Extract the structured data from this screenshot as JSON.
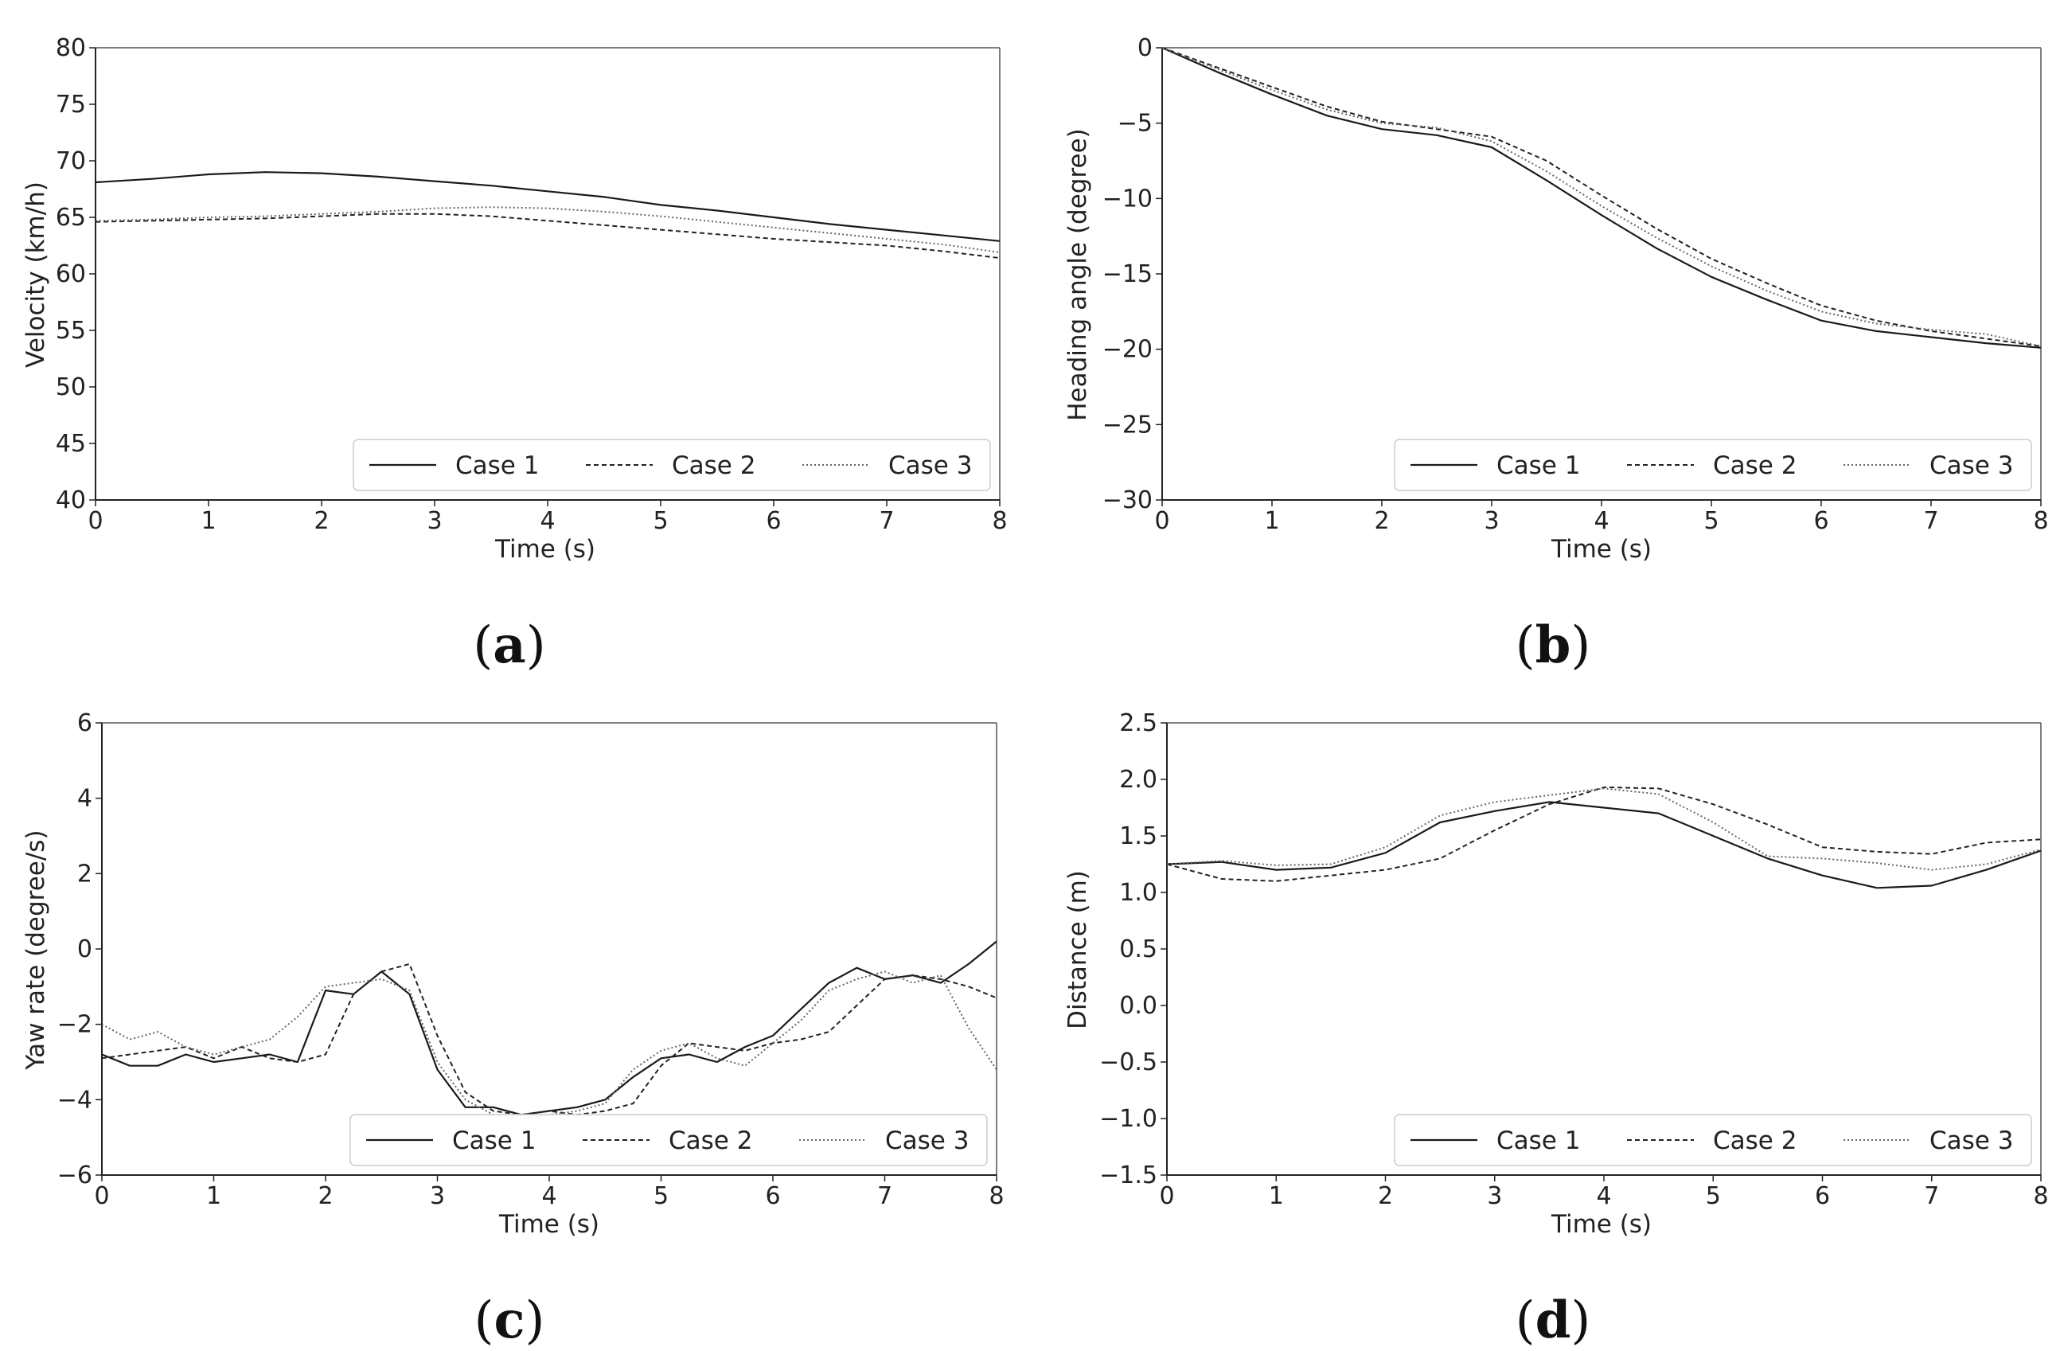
{
  "chart_data": [
    {
      "type": "line",
      "caption": "a",
      "xlabel": "Time (s)",
      "ylabel": "Velocity (km/h)",
      "xlim": [
        0,
        8
      ],
      "ylim": [
        40,
        80
      ],
      "xticks": [
        "0",
        "1",
        "2",
        "3",
        "4",
        "5",
        "6",
        "7",
        "8"
      ],
      "yticks": [
        "40",
        "45",
        "50",
        "55",
        "60",
        "65",
        "70",
        "75",
        "80"
      ],
      "legend": [
        "Case 1",
        "Case 2",
        "Case 3"
      ],
      "series": [
        {
          "name": "Case 1",
          "x": [
            0,
            0.5,
            1,
            1.5,
            2,
            2.5,
            3,
            3.5,
            4,
            4.5,
            5,
            5.5,
            6,
            6.5,
            7,
            7.5,
            8
          ],
          "y": [
            68.1,
            68.4,
            68.8,
            69.0,
            68.9,
            68.6,
            68.2,
            67.8,
            67.3,
            66.8,
            66.1,
            65.6,
            65.0,
            64.4,
            63.9,
            63.4,
            62.9
          ]
        },
        {
          "name": "Case 2",
          "x": [
            0,
            0.5,
            1,
            1.5,
            2,
            2.5,
            3,
            3.5,
            4,
            4.5,
            5,
            5.5,
            6,
            6.5,
            7,
            7.5,
            8
          ],
          "y": [
            64.6,
            64.7,
            64.8,
            64.9,
            65.1,
            65.3,
            65.3,
            65.1,
            64.7,
            64.3,
            63.9,
            63.5,
            63.1,
            62.8,
            62.5,
            62.0,
            61.4
          ]
        },
        {
          "name": "Case 3",
          "x": [
            0,
            0.5,
            1,
            1.5,
            2,
            2.5,
            3,
            3.5,
            4,
            4.5,
            5,
            5.5,
            6,
            6.5,
            7,
            7.5,
            8
          ],
          "y": [
            64.7,
            64.8,
            65.0,
            65.1,
            65.3,
            65.5,
            65.8,
            65.9,
            65.8,
            65.5,
            65.1,
            64.6,
            64.1,
            63.6,
            63.1,
            62.6,
            61.9
          ]
        }
      ]
    },
    {
      "type": "line",
      "caption": "b",
      "xlabel": "Time (s)",
      "ylabel": "Heading angle (degree)",
      "xlim": [
        0,
        8
      ],
      "ylim": [
        -30,
        0
      ],
      "xticks": [
        "0",
        "1",
        "2",
        "3",
        "4",
        "5",
        "6",
        "7",
        "8"
      ],
      "yticks": [
        "0",
        "−5",
        "−10",
        "−15",
        "−20",
        "−25",
        "−30"
      ],
      "legend": [
        "Case 1",
        "Case 2",
        "Case 3"
      ],
      "series": [
        {
          "name": "Case 1",
          "x": [
            0,
            0.5,
            1,
            1.5,
            2,
            2.5,
            3,
            3.5,
            4,
            4.5,
            5,
            5.5,
            6,
            6.5,
            7,
            7.5,
            8
          ],
          "y": [
            0,
            -1.6,
            -3.1,
            -4.5,
            -5.4,
            -5.8,
            -6.6,
            -8.8,
            -11.1,
            -13.3,
            -15.2,
            -16.7,
            -18.1,
            -18.8,
            -19.2,
            -19.6,
            -19.9
          ]
        },
        {
          "name": "Case 2",
          "x": [
            0,
            0.5,
            1,
            1.5,
            2,
            2.5,
            3,
            3.5,
            4,
            4.5,
            5,
            5.5,
            6,
            6.5,
            7,
            7.5,
            8
          ],
          "y": [
            0,
            -1.3,
            -2.6,
            -3.9,
            -4.9,
            -5.4,
            -5.9,
            -7.5,
            -9.8,
            -12.0,
            -14.0,
            -15.6,
            -17.1,
            -18.1,
            -18.8,
            -19.3,
            -19.8
          ]
        },
        {
          "name": "Case 3",
          "x": [
            0,
            0.5,
            1,
            1.5,
            2,
            2.5,
            3,
            3.5,
            4,
            4.5,
            5,
            5.5,
            6,
            6.5,
            7,
            7.5,
            8
          ],
          "y": [
            0,
            -1.4,
            -2.8,
            -4.1,
            -5.0,
            -5.3,
            -6.2,
            -8.2,
            -10.5,
            -12.6,
            -14.5,
            -16.1,
            -17.5,
            -18.3,
            -18.7,
            -19.0,
            -19.8
          ]
        }
      ]
    },
    {
      "type": "line",
      "caption": "c",
      "xlabel": "Time (s)",
      "ylabel": "Yaw rate (degree/s)",
      "xlim": [
        0,
        8
      ],
      "ylim": [
        -6,
        6
      ],
      "xticks": [
        "0",
        "1",
        "2",
        "3",
        "4",
        "5",
        "6",
        "7",
        "8"
      ],
      "yticks": [
        "−6",
        "−4",
        "−2",
        "0",
        "2",
        "4",
        "6"
      ],
      "legend": [
        "Case 1",
        "Case 2",
        "Case 3"
      ],
      "series": [
        {
          "name": "Case 1",
          "x": [
            0,
            0.25,
            0.5,
            0.75,
            1,
            1.25,
            1.5,
            1.75,
            2,
            2.25,
            2.5,
            2.75,
            3,
            3.25,
            3.5,
            3.75,
            4,
            4.25,
            4.5,
            4.75,
            5,
            5.25,
            5.5,
            5.75,
            6,
            6.25,
            6.5,
            6.75,
            7,
            7.25,
            7.5,
            7.75,
            8
          ],
          "y": [
            -2.8,
            -3.1,
            -3.1,
            -2.8,
            -3.0,
            -2.9,
            -2.8,
            -3.0,
            -1.1,
            -1.2,
            -0.6,
            -1.2,
            -3.2,
            -4.2,
            -4.2,
            -4.4,
            -4.3,
            -4.2,
            -4.0,
            -3.4,
            -2.9,
            -2.8,
            -3.0,
            -2.6,
            -2.3,
            -1.6,
            -0.9,
            -0.5,
            -0.8,
            -0.7,
            -0.9,
            -0.4,
            0.2
          ]
        },
        {
          "name": "Case 2",
          "x": [
            0,
            0.25,
            0.5,
            0.75,
            1,
            1.25,
            1.5,
            1.75,
            2,
            2.25,
            2.5,
            2.75,
            3,
            3.25,
            3.5,
            3.75,
            4,
            4.25,
            4.5,
            4.75,
            5,
            5.25,
            5.5,
            5.75,
            6,
            6.25,
            6.5,
            6.75,
            7,
            7.25,
            7.5,
            7.75,
            8
          ],
          "y": [
            -2.9,
            -2.8,
            -2.7,
            -2.6,
            -2.9,
            -2.6,
            -2.9,
            -3.0,
            -2.8,
            -1.2,
            -0.6,
            -0.4,
            -2.3,
            -3.8,
            -4.3,
            -4.4,
            -4.3,
            -4.4,
            -4.3,
            -4.1,
            -3.1,
            -2.5,
            -2.6,
            -2.7,
            -2.5,
            -2.4,
            -2.2,
            -1.5,
            -0.8,
            -0.7,
            -0.8,
            -1.0,
            -1.3
          ]
        },
        {
          "name": "Case 3",
          "x": [
            0,
            0.25,
            0.5,
            0.75,
            1,
            1.25,
            1.5,
            1.75,
            2,
            2.25,
            2.5,
            2.75,
            3,
            3.25,
            3.5,
            3.75,
            4,
            4.25,
            4.5,
            4.75,
            5,
            5.25,
            5.5,
            5.75,
            6,
            6.25,
            6.5,
            6.75,
            7,
            7.25,
            7.5,
            7.75,
            8
          ],
          "y": [
            -2.0,
            -2.4,
            -2.2,
            -2.6,
            -2.8,
            -2.6,
            -2.4,
            -1.8,
            -1.0,
            -0.9,
            -0.8,
            -1.1,
            -3.0,
            -4.0,
            -4.4,
            -4.5,
            -4.4,
            -4.3,
            -4.1,
            -3.2,
            -2.7,
            -2.5,
            -2.9,
            -3.1,
            -2.5,
            -1.9,
            -1.1,
            -0.8,
            -0.6,
            -0.9,
            -0.7,
            -2.1,
            -3.2
          ]
        }
      ]
    },
    {
      "type": "line",
      "caption": "d",
      "xlabel": "Time (s)",
      "ylabel": "Distance (m)",
      "xlim": [
        0,
        8
      ],
      "ylim": [
        -1.5,
        2.5
      ],
      "xticks": [
        "0",
        "1",
        "2",
        "3",
        "4",
        "5",
        "6",
        "7",
        "8"
      ],
      "yticks": [
        "−1.5",
        "−1.0",
        "−0.5",
        "0.0",
        "0.5",
        "1.0",
        "1.5",
        "2.0",
        "2.5"
      ],
      "legend": [
        "Case 1",
        "Case 2",
        "Case 3"
      ],
      "series": [
        {
          "name": "Case 1",
          "x": [
            0,
            0.5,
            1,
            1.5,
            2,
            2.5,
            3,
            3.5,
            4,
            4.5,
            5,
            5.5,
            6,
            6.5,
            7,
            7.5,
            8
          ],
          "y": [
            1.25,
            1.27,
            1.2,
            1.22,
            1.35,
            1.62,
            1.72,
            1.8,
            1.75,
            1.7,
            1.5,
            1.3,
            1.15,
            1.04,
            1.06,
            1.2,
            1.37
          ]
        },
        {
          "name": "Case 2",
          "x": [
            0,
            0.5,
            1,
            1.5,
            2,
            2.5,
            3,
            3.5,
            4,
            4.5,
            5,
            5.5,
            6,
            6.5,
            7,
            7.5,
            8
          ],
          "y": [
            1.25,
            1.12,
            1.1,
            1.15,
            1.2,
            1.3,
            1.55,
            1.78,
            1.93,
            1.92,
            1.78,
            1.6,
            1.4,
            1.36,
            1.34,
            1.44,
            1.47
          ]
        },
        {
          "name": "Case 3",
          "x": [
            0,
            0.5,
            1,
            1.5,
            2,
            2.5,
            3,
            3.5,
            4,
            4.5,
            5,
            5.5,
            6,
            6.5,
            7,
            7.5,
            8
          ],
          "y": [
            1.25,
            1.28,
            1.24,
            1.25,
            1.4,
            1.68,
            1.8,
            1.86,
            1.92,
            1.87,
            1.62,
            1.32,
            1.3,
            1.26,
            1.2,
            1.25,
            1.38
          ]
        }
      ]
    }
  ]
}
